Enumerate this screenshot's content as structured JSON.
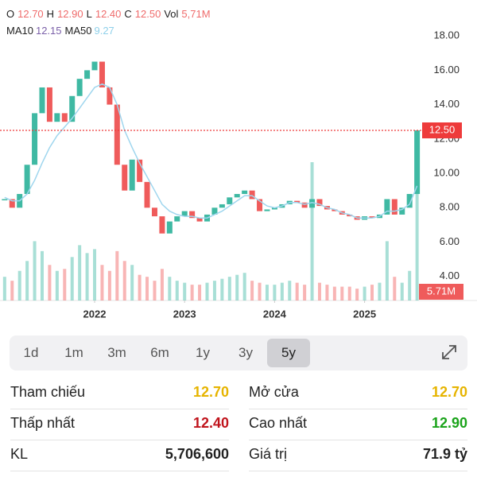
{
  "header": {
    "items": [
      {
        "key": "O",
        "value": "12.70"
      },
      {
        "key": "H",
        "value": "12.90"
      },
      {
        "key": "L",
        "value": "12.40"
      },
      {
        "key": "C",
        "value": "12.50"
      },
      {
        "key": "Vol",
        "value": "5,71M"
      }
    ],
    "ma": [
      {
        "key": "MA10",
        "value": "12.15",
        "color": "#7a5fa8"
      },
      {
        "key": "MA50",
        "value": "9.27",
        "color": "#8fd0ea"
      }
    ]
  },
  "chart_data": {
    "type": "candlestick",
    "close": [
      8.5,
      8.0,
      8.8,
      10.5,
      13.5,
      15.0,
      13.0,
      13.5,
      13.0,
      14.5,
      15.5,
      16.0,
      16.5,
      15.0,
      14.0,
      10.5,
      9.0,
      10.8,
      9.5,
      8.0,
      7.5,
      6.5,
      7.2,
      7.5,
      7.8,
      7.4,
      7.2,
      7.6,
      8.0,
      8.2,
      8.6,
      8.8,
      9.0,
      8.5,
      7.8,
      7.9,
      8.0,
      8.2,
      8.4,
      8.3,
      8.0,
      8.5,
      8.1,
      7.9,
      7.8,
      7.6,
      7.5,
      7.3,
      7.5,
      7.4,
      7.6,
      8.5,
      7.6,
      8.0,
      8.8,
      12.5
    ],
    "ma50": {
      "name": "MA50",
      "color": "#9fd6ee",
      "values": [
        8.6,
        8.4,
        8.4,
        8.8,
        9.6,
        10.6,
        11.5,
        12.2,
        12.7,
        13.2,
        13.8,
        14.4,
        15.0,
        15.2,
        15.0,
        14.0,
        12.5,
        11.5,
        10.6,
        9.8,
        9.0,
        8.2,
        7.8,
        7.6,
        7.5,
        7.5,
        7.4,
        7.4,
        7.6,
        7.8,
        8.1,
        8.4,
        8.7,
        8.7,
        8.4,
        8.1,
        8.0,
        8.1,
        8.3,
        8.3,
        8.2,
        8.3,
        8.2,
        8.0,
        7.9,
        7.7,
        7.6,
        7.4,
        7.4,
        7.4,
        7.5,
        7.8,
        7.8,
        7.9,
        8.2,
        9.27
      ]
    },
    "volume": [
      1.2,
      1.0,
      1.5,
      2.0,
      3.0,
      2.5,
      1.8,
      1.5,
      1.6,
      2.2,
      2.8,
      2.4,
      2.6,
      1.8,
      1.5,
      2.5,
      2.0,
      1.8,
      1.3,
      1.2,
      1.0,
      1.6,
      1.2,
      1.0,
      0.9,
      0.8,
      0.8,
      0.9,
      1.0,
      1.1,
      1.2,
      1.3,
      1.4,
      1.0,
      0.9,
      0.8,
      0.8,
      0.9,
      1.0,
      0.9,
      0.8,
      7.0,
      0.9,
      0.8,
      0.7,
      0.7,
      0.7,
      0.6,
      0.7,
      0.8,
      0.9,
      3.0,
      1.2,
      0.9,
      1.5,
      5.71
    ],
    "volume_label": "5.71M",
    "vlim": [
      0,
      14
    ],
    "up_color": "#3fb9a3",
    "down_color": "#ef5b5b",
    "last_price": {
      "value": 12.5,
      "label": "12.50",
      "color": "#ee3b3b"
    },
    "ylim": [
      2.6,
      18.7
    ],
    "yticks": [
      {
        "value": 4,
        "label": "4.00"
      },
      {
        "value": 6,
        "label": "6.00"
      },
      {
        "value": 8,
        "label": "8.00"
      },
      {
        "value": 10,
        "label": "10.00"
      },
      {
        "value": 12,
        "label": "12.00"
      },
      {
        "value": 14,
        "label": "14.00"
      },
      {
        "value": 16,
        "label": "16.00"
      },
      {
        "value": 18,
        "label": "18.00"
      }
    ],
    "xlim": [
      -0.3,
      57
    ],
    "xticks": [
      {
        "value": 12,
        "label": "2022"
      },
      {
        "value": 24,
        "label": "2023"
      },
      {
        "value": 36,
        "label": "2024"
      },
      {
        "value": 48,
        "label": "2025"
      }
    ]
  },
  "tabs": {
    "items": [
      "1d",
      "1m",
      "3m",
      "6m",
      "1y",
      "3y",
      "5y"
    ],
    "selected": 6
  },
  "stats": {
    "left": [
      {
        "label": "Tham chiếu",
        "value": "12.70",
        "color": "#e6b400"
      },
      {
        "label": "Thấp nhất",
        "value": "12.40",
        "color": "#c0141c"
      },
      {
        "label": "KL",
        "value": "5,706,600",
        "color": "#222222"
      }
    ],
    "right": [
      {
        "label": "Mở cửa",
        "value": "12.70",
        "color": "#e6b400"
      },
      {
        "label": "Cao nhất",
        "value": "12.90",
        "color": "#1aa31a"
      },
      {
        "label": "Giá trị",
        "value": "71.9 tỷ",
        "color": "#222222"
      }
    ]
  }
}
